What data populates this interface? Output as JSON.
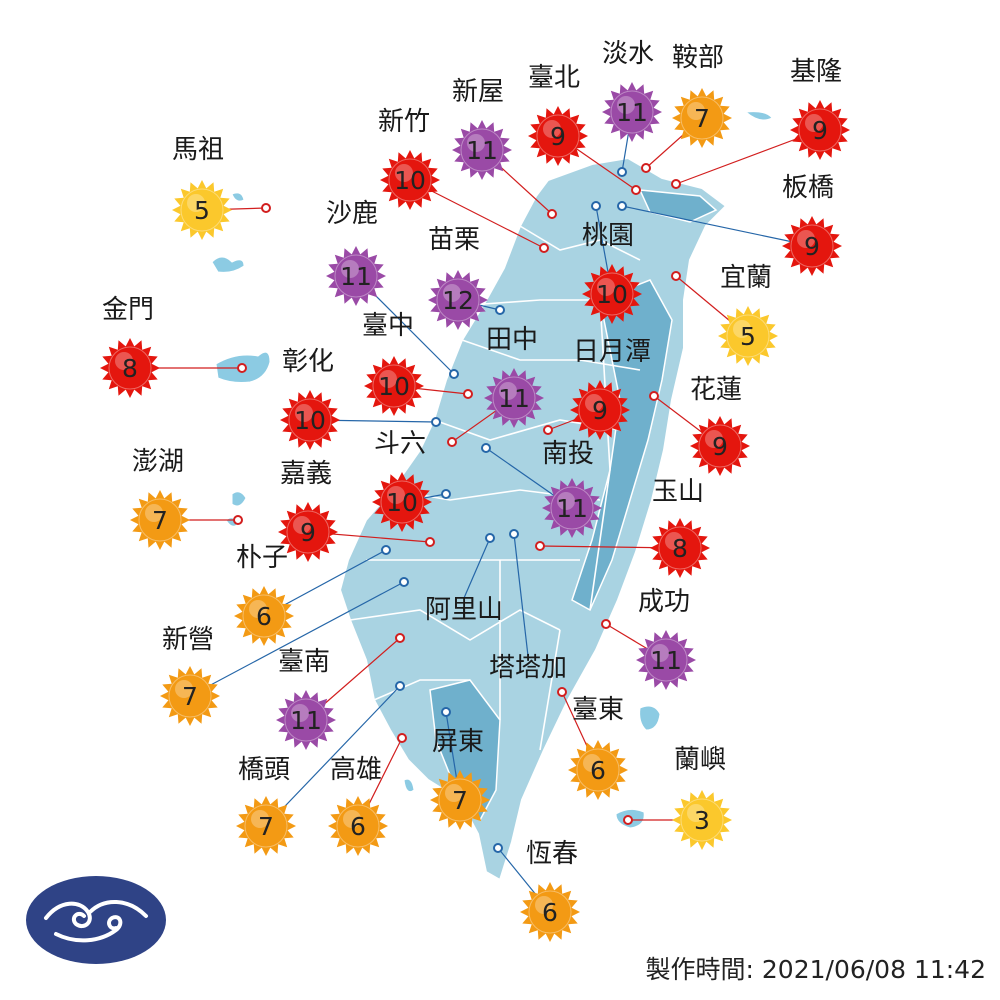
{
  "colors": {
    "land": "#a9d3e2",
    "land_dark": "#6fb0cc",
    "land_border": "#ffffff",
    "islands": "#8ccbe3",
    "leader_red": "#d21e1e",
    "leader_blue": "#2566a8",
    "logo_fill": "#2f4386",
    "uv_levels": {
      "low": "#32b42c",
      "moderate": "#fbc82c",
      "high": "#f39a14",
      "very_high": "#e4160e",
      "extreme": "#9a4aa6"
    }
  },
  "icons": {
    "uv_badge": "sun-icon",
    "logo": "cwb-cloud-logo-icon"
  },
  "stations": [
    {
      "name": "馬祖",
      "uv": 5,
      "level": "moderate",
      "leader": "red"
    },
    {
      "name": "新竹",
      "uv": 10,
      "level": "very_high",
      "leader": "red"
    },
    {
      "name": "新屋",
      "uv": 11,
      "level": "extreme",
      "leader": "red"
    },
    {
      "name": "臺北",
      "uv": 9,
      "level": "very_high",
      "leader": "red"
    },
    {
      "name": "淡水",
      "uv": 11,
      "level": "extreme",
      "leader": "blue"
    },
    {
      "name": "鞍部",
      "uv": 7,
      "level": "high",
      "leader": "red"
    },
    {
      "name": "基隆",
      "uv": 9,
      "level": "very_high",
      "leader": "red"
    },
    {
      "name": "板橋",
      "uv": 9,
      "level": "very_high",
      "leader": "blue"
    },
    {
      "name": "沙鹿",
      "uv": 11,
      "level": "extreme",
      "leader": "blue"
    },
    {
      "name": "苗栗",
      "uv": 12,
      "level": "extreme",
      "leader": "blue"
    },
    {
      "name": "桃園",
      "uv": 10,
      "level": "very_high",
      "leader": "blue"
    },
    {
      "name": "宜蘭",
      "uv": 5,
      "level": "moderate",
      "leader": "red"
    },
    {
      "name": "金門",
      "uv": 8,
      "level": "very_high",
      "leader": "red"
    },
    {
      "name": "臺中",
      "uv": 10,
      "level": "very_high",
      "leader": "red"
    },
    {
      "name": "田中",
      "uv": 11,
      "level": "extreme",
      "leader": "red"
    },
    {
      "name": "日月潭",
      "uv": 9,
      "level": "very_high",
      "leader": "red"
    },
    {
      "name": "彰化",
      "uv": 10,
      "level": "very_high",
      "leader": "blue"
    },
    {
      "name": "花蓮",
      "uv": 9,
      "level": "very_high",
      "leader": "red"
    },
    {
      "name": "澎湖",
      "uv": 7,
      "level": "high",
      "leader": "red"
    },
    {
      "name": "斗六",
      "uv": 10,
      "level": "very_high",
      "leader": "blue"
    },
    {
      "name": "嘉義",
      "uv": 9,
      "level": "very_high",
      "leader": "red"
    },
    {
      "name": "南投",
      "uv": 11,
      "level": "extreme",
      "leader": "blue"
    },
    {
      "name": "玉山",
      "uv": 8,
      "level": "very_high",
      "leader": "red"
    },
    {
      "name": "朴子",
      "uv": 6,
      "level": "high",
      "leader": "blue"
    },
    {
      "name": "阿里山",
      "uv": null,
      "level": null,
      "leader": "blue"
    },
    {
      "name": "新營",
      "uv": 7,
      "level": "high",
      "leader": "blue"
    },
    {
      "name": "成功",
      "uv": 11,
      "level": "extreme",
      "leader": "red"
    },
    {
      "name": "臺南",
      "uv": 11,
      "level": "extreme",
      "leader": "red"
    },
    {
      "name": "塔塔加",
      "uv": null,
      "level": null,
      "leader": "blue"
    },
    {
      "name": "臺東",
      "uv": 6,
      "level": "high",
      "leader": "red"
    },
    {
      "name": "蘭嶼",
      "uv": 3,
      "level": "moderate",
      "leader": "red"
    },
    {
      "name": "橋頭",
      "uv": 7,
      "level": "high",
      "leader": "blue"
    },
    {
      "name": "高雄",
      "uv": 6,
      "level": "high",
      "leader": "red"
    },
    {
      "name": "屏東",
      "uv": 7,
      "level": "high",
      "leader": "blue"
    },
    {
      "name": "恆春",
      "uv": 6,
      "level": "high",
      "leader": "blue"
    }
  ],
  "footer": {
    "label": "製作時間: 2021/06/08 11:42"
  }
}
